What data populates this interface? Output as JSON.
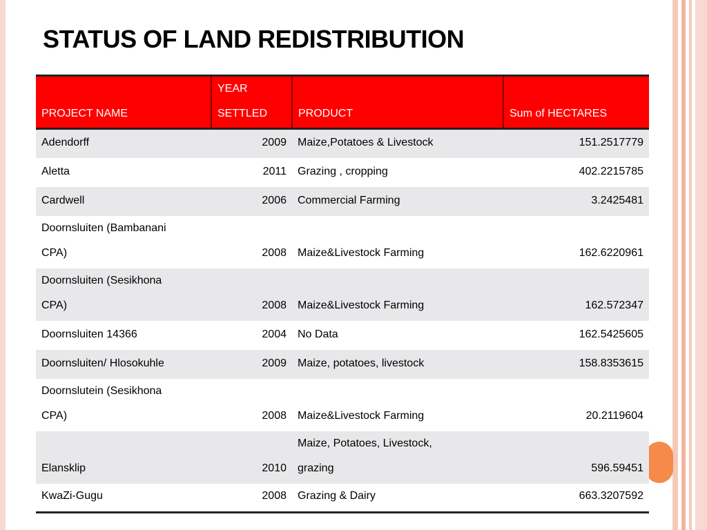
{
  "title": "STATUS OF LAND REDISTRIBUTION",
  "table": {
    "headers": {
      "project": "PROJECT  NAME",
      "year_line1": "YEAR",
      "year_line2": "SETTLED",
      "product": "PRODUCT",
      "hectares": "Sum of HECTARES"
    },
    "rows": [
      {
        "name1": "Adendorff",
        "name2": "",
        "year": "2009",
        "product1": "Maize,Potatoes & Livestock",
        "product2": "",
        "hectares": "151.2517779"
      },
      {
        "name1": "Aletta",
        "name2": "",
        "year": "2011",
        "product1": "Grazing , cropping",
        "product2": "",
        "hectares": "402.2215785"
      },
      {
        "name1": "Cardwell",
        "name2": "",
        "year": "2006",
        "product1": "Commercial Farming",
        "product2": "",
        "hectares": "3.2425481"
      },
      {
        "name1": "Doornsluiten (Bambanani",
        "name2": "CPA)",
        "year": "2008",
        "product1": "Maize&Livestock Farming",
        "product2": "",
        "hectares": "162.6220961"
      },
      {
        "name1": "Doornsluiten (Sesikhona",
        "name2": "CPA)",
        "year": "2008",
        "product1": "Maize&Livestock Farming",
        "product2": "",
        "hectares": "162.572347"
      },
      {
        "name1": "Doornsluiten 14366",
        "name2": "",
        "year": "2004",
        "product1": "No Data",
        "product2": "",
        "hectares": "162.5425605"
      },
      {
        "name1": "Doornsluiten/ Hlosokuhle",
        "name2": "",
        "year": "2009",
        "product1": "Maize, potatoes, livestock",
        "product2": "",
        "hectares": "158.8353615"
      },
      {
        "name1": "Doornslutein (Sesikhona",
        "name2": "CPA)",
        "year": "2008",
        "product1": "Maize&Livestock Farming",
        "product2": "",
        "hectares": "20.2119604"
      },
      {
        "name1": "",
        "name2": "Elansklip",
        "year": "2010",
        "product1": "Maize, Potatoes, Livestock,",
        "product2": "grazing",
        "hectares": "596.59451"
      },
      {
        "name1": "KwaZi-Gugu",
        "name2": "",
        "year": "2008",
        "product1": "Grazing & Dairy",
        "product2": "",
        "hectares": "663.3207592"
      }
    ]
  }
}
